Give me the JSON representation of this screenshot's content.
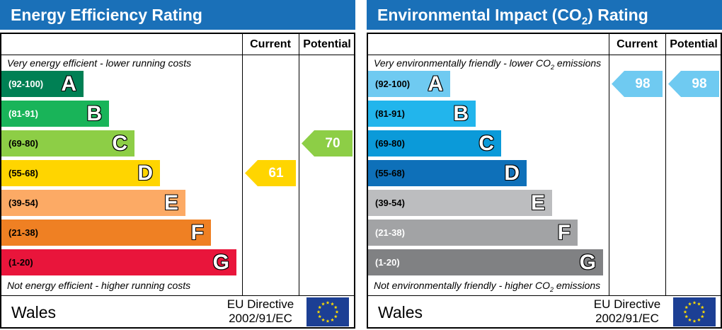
{
  "chart_data": [
    {
      "type": "bar",
      "title": "Energy Efficiency Rating",
      "columns": [
        "Current",
        "Potential"
      ],
      "top_note": "Very energy efficient - lower running costs",
      "bottom_note": "Not energy efficient - higher running costs",
      "bands": [
        {
          "letter": "A",
          "range": "(92-100)",
          "color": "#008054",
          "text_color": "#ffffff"
        },
        {
          "letter": "B",
          "range": "(81-91)",
          "color": "#19b459",
          "text_color": "#ffffff"
        },
        {
          "letter": "C",
          "range": "(69-80)",
          "color": "#8dce46",
          "text_color": "#000000"
        },
        {
          "letter": "D",
          "range": "(55-68)",
          "color": "#ffd500",
          "text_color": "#000000"
        },
        {
          "letter": "E",
          "range": "(39-54)",
          "color": "#fcaa65",
          "text_color": "#000000"
        },
        {
          "letter": "F",
          "range": "(21-38)",
          "color": "#ef8023",
          "text_color": "#000000"
        },
        {
          "letter": "G",
          "range": "(1-20)",
          "color": "#e9153b",
          "text_color": "#000000"
        }
      ],
      "current": {
        "value": "61",
        "band": "D",
        "color": "#ffd500"
      },
      "potential": {
        "value": "70",
        "band": "C",
        "color": "#8dce46"
      },
      "country": "Wales",
      "directive": [
        "EU Directive",
        "2002/91/EC"
      ]
    },
    {
      "type": "bar",
      "title_parts": [
        "Environmental Impact (CO",
        "2",
        ") Rating"
      ],
      "columns": [
        "Current",
        "Potential"
      ],
      "top_note_parts": [
        "Very environmentally friendly - lower CO",
        "2",
        " emissions"
      ],
      "bottom_note_parts": [
        "Not environmentally friendly - higher CO",
        "2",
        " emissions"
      ],
      "bands": [
        {
          "letter": "A",
          "range": "(92-100)",
          "color": "#6fcaf1",
          "text_color": "#000000"
        },
        {
          "letter": "B",
          "range": "(81-91)",
          "color": "#22b5ec",
          "text_color": "#000000"
        },
        {
          "letter": "C",
          "range": "(69-80)",
          "color": "#0b9ad9",
          "text_color": "#000000"
        },
        {
          "letter": "D",
          "range": "(55-68)",
          "color": "#0e70b9",
          "text_color": "#000000"
        },
        {
          "letter": "E",
          "range": "(39-54)",
          "color": "#bcbdbf",
          "text_color": "#000000"
        },
        {
          "letter": "F",
          "range": "(21-38)",
          "color": "#a2a3a5",
          "text_color": "#ffffff"
        },
        {
          "letter": "G",
          "range": "(1-20)",
          "color": "#808183",
          "text_color": "#ffffff"
        }
      ],
      "current": {
        "value": "98",
        "band": "A",
        "color": "#6fcaf1"
      },
      "potential": {
        "value": "98",
        "band": "A",
        "color": "#6fcaf1"
      },
      "country": "Wales",
      "directive": [
        "EU Directive",
        "2002/91/EC"
      ]
    }
  ]
}
